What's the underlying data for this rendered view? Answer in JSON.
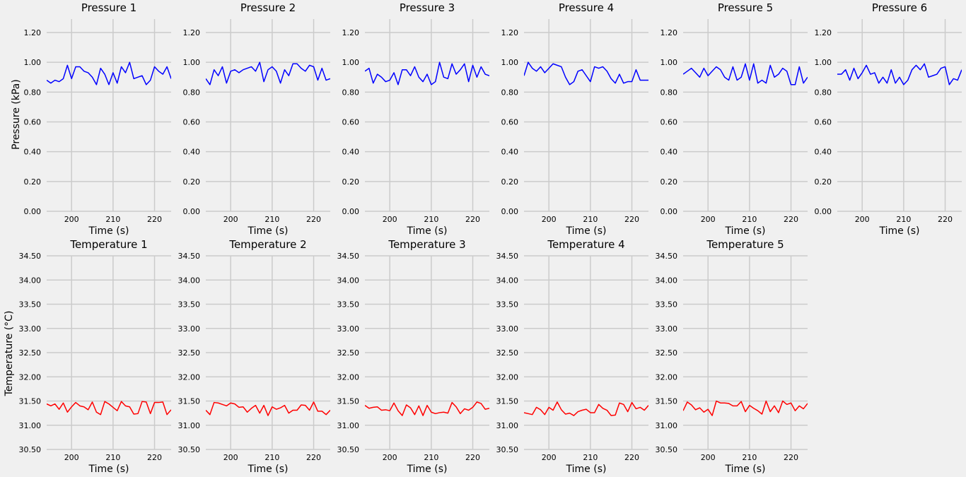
{
  "figure": {
    "background": "#f0f0f0",
    "grid_color": "#cbcbcb",
    "pressure_ylabel": "Pressure (kPa)",
    "temperature_ylabel": "Temperature (°C)"
  },
  "chart_data": [
    {
      "type": "line",
      "title": "Pressure 1",
      "xlabel": "Time (s)",
      "xlim": [
        194,
        224
      ],
      "ylim": [
        0,
        1.29
      ],
      "xticks": [
        200,
        210,
        220
      ],
      "yticks": [
        "0.00",
        "0.20",
        "0.40",
        "0.60",
        "0.80",
        "1.00",
        "1.20"
      ],
      "grid": true,
      "series": [
        {
          "color": "#0000ff",
          "x": [
            194,
            195,
            196,
            197,
            198,
            199,
            200,
            201,
            202,
            203,
            204,
            205,
            206,
            207,
            208,
            209,
            210,
            211,
            212,
            213,
            214,
            215,
            216,
            217,
            218,
            219,
            220,
            221,
            222,
            223,
            224
          ],
          "y": [
            0.88,
            0.86,
            0.88,
            0.87,
            0.89,
            0.98,
            0.89,
            0.97,
            0.97,
            0.94,
            0.93,
            0.9,
            0.85,
            0.96,
            0.92,
            0.85,
            0.93,
            0.86,
            0.97,
            0.93,
            1.0,
            0.89,
            0.9,
            0.91,
            0.85,
            0.88,
            0.97,
            0.94,
            0.92,
            0.97,
            0.89
          ]
        }
      ]
    },
    {
      "type": "line",
      "title": "Pressure 2",
      "xlabel": "Time (s)",
      "xlim": [
        194,
        224
      ],
      "ylim": [
        0,
        1.29
      ],
      "xticks": [
        200,
        210,
        220
      ],
      "yticks": [
        "0.00",
        "0.20",
        "0.40",
        "0.60",
        "0.80",
        "1.00",
        "1.20"
      ],
      "grid": true,
      "series": [
        {
          "color": "#0000ff",
          "x": [
            194,
            195,
            196,
            197,
            198,
            199,
            200,
            201,
            202,
            203,
            204,
            205,
            206,
            207,
            208,
            209,
            210,
            211,
            212,
            213,
            214,
            215,
            216,
            217,
            218,
            219,
            220,
            221,
            222,
            223,
            224
          ],
          "y": [
            0.89,
            0.85,
            0.95,
            0.91,
            0.97,
            0.86,
            0.94,
            0.95,
            0.93,
            0.95,
            0.96,
            0.97,
            0.94,
            1.0,
            0.87,
            0.95,
            0.97,
            0.94,
            0.86,
            0.95,
            0.91,
            0.99,
            0.99,
            0.96,
            0.94,
            0.98,
            0.97,
            0.88,
            0.96,
            0.88,
            0.89
          ]
        }
      ]
    },
    {
      "type": "line",
      "title": "Pressure 3",
      "xlabel": "Time (s)",
      "xlim": [
        194,
        224
      ],
      "ylim": [
        0,
        1.29
      ],
      "xticks": [
        200,
        210,
        220
      ],
      "yticks": [
        "0.00",
        "0.20",
        "0.40",
        "0.60",
        "0.80",
        "1.00",
        "1.20"
      ],
      "grid": true,
      "series": [
        {
          "color": "#0000ff",
          "x": [
            194,
            195,
            196,
            197,
            198,
            199,
            200,
            201,
            202,
            203,
            204,
            205,
            206,
            207,
            208,
            209,
            210,
            211,
            212,
            213,
            214,
            215,
            216,
            217,
            218,
            219,
            220,
            221,
            222,
            223,
            224
          ],
          "y": [
            0.94,
            0.96,
            0.86,
            0.92,
            0.9,
            0.87,
            0.88,
            0.93,
            0.85,
            0.95,
            0.95,
            0.91,
            0.97,
            0.9,
            0.87,
            0.92,
            0.85,
            0.87,
            1.0,
            0.9,
            0.89,
            0.99,
            0.92,
            0.95,
            0.99,
            0.87,
            0.98,
            0.9,
            0.97,
            0.92,
            0.91
          ]
        }
      ]
    },
    {
      "type": "line",
      "title": "Pressure 4",
      "xlabel": "Time (s)",
      "xlim": [
        194,
        224
      ],
      "ylim": [
        0,
        1.29
      ],
      "xticks": [
        200,
        210,
        220
      ],
      "yticks": [
        "0.00",
        "0.20",
        "0.40",
        "0.60",
        "0.80",
        "1.00",
        "1.20"
      ],
      "grid": true,
      "series": [
        {
          "color": "#0000ff",
          "x": [
            194,
            195,
            196,
            197,
            198,
            199,
            200,
            201,
            202,
            203,
            204,
            205,
            206,
            207,
            208,
            209,
            210,
            211,
            212,
            213,
            214,
            215,
            216,
            217,
            218,
            219,
            220,
            221,
            222,
            223,
            224
          ],
          "y": [
            0.91,
            1.0,
            0.96,
            0.94,
            0.97,
            0.93,
            0.96,
            0.99,
            0.98,
            0.97,
            0.9,
            0.85,
            0.87,
            0.94,
            0.95,
            0.91,
            0.87,
            0.97,
            0.96,
            0.97,
            0.94,
            0.89,
            0.86,
            0.92,
            0.86,
            0.87,
            0.87,
            0.95,
            0.88,
            0.88,
            0.88
          ]
        }
      ]
    },
    {
      "type": "line",
      "title": "Pressure 5",
      "xlabel": "Time (s)",
      "xlim": [
        194,
        224
      ],
      "ylim": [
        0,
        1.29
      ],
      "xticks": [
        200,
        210,
        220
      ],
      "yticks": [
        "0.00",
        "0.20",
        "0.40",
        "0.60",
        "0.80",
        "1.00",
        "1.20"
      ],
      "grid": true,
      "series": [
        {
          "color": "#0000ff",
          "x": [
            194,
            195,
            196,
            197,
            198,
            199,
            200,
            201,
            202,
            203,
            204,
            205,
            206,
            207,
            208,
            209,
            210,
            211,
            212,
            213,
            214,
            215,
            216,
            217,
            218,
            219,
            220,
            221,
            222,
            223,
            224
          ],
          "y": [
            0.92,
            0.94,
            0.96,
            0.93,
            0.9,
            0.96,
            0.91,
            0.94,
            0.97,
            0.95,
            0.9,
            0.88,
            0.97,
            0.88,
            0.9,
            0.99,
            0.88,
            0.99,
            0.86,
            0.88,
            0.86,
            0.98,
            0.9,
            0.92,
            0.96,
            0.94,
            0.85,
            0.85,
            0.97,
            0.86,
            0.9
          ]
        }
      ]
    },
    {
      "type": "line",
      "title": "Pressure 6",
      "xlabel": "Time (s)",
      "xlim": [
        194,
        224
      ],
      "ylim": [
        0,
        1.29
      ],
      "xticks": [
        200,
        210,
        220
      ],
      "yticks": [
        "0.00",
        "0.20",
        "0.40",
        "0.60",
        "0.80",
        "1.00",
        "1.20"
      ],
      "grid": true,
      "series": [
        {
          "color": "#0000ff",
          "x": [
            194,
            195,
            196,
            197,
            198,
            199,
            200,
            201,
            202,
            203,
            204,
            205,
            206,
            207,
            208,
            209,
            210,
            211,
            212,
            213,
            214,
            215,
            216,
            217,
            218,
            219,
            220,
            221,
            222,
            223,
            224
          ],
          "y": [
            0.92,
            0.92,
            0.95,
            0.88,
            0.96,
            0.89,
            0.93,
            0.98,
            0.92,
            0.93,
            0.86,
            0.9,
            0.86,
            0.95,
            0.86,
            0.9,
            0.85,
            0.88,
            0.95,
            0.98,
            0.95,
            0.99,
            0.9,
            0.91,
            0.92,
            0.96,
            0.97,
            0.85,
            0.89,
            0.88,
            0.95
          ]
        }
      ]
    },
    {
      "type": "line",
      "title": "Temperature 1",
      "xlabel": "Time (s)",
      "xlim": [
        194,
        224
      ],
      "ylim": [
        30.5,
        34.5
      ],
      "xticks": [
        200,
        210,
        220
      ],
      "yticks": [
        "30.50",
        "31.00",
        "31.50",
        "32.00",
        "32.50",
        "33.00",
        "33.50",
        "34.00",
        "34.50"
      ],
      "grid": true,
      "series": [
        {
          "color": "#ff0000",
          "x": [
            194,
            195,
            196,
            197,
            198,
            199,
            200,
            201,
            202,
            203,
            204,
            205,
            206,
            207,
            208,
            209,
            210,
            211,
            212,
            213,
            214,
            215,
            216,
            217,
            218,
            219,
            220,
            221,
            222,
            223,
            224
          ],
          "y": [
            31.44,
            31.4,
            31.44,
            31.33,
            31.46,
            31.27,
            31.38,
            31.47,
            31.4,
            31.38,
            31.32,
            31.48,
            31.27,
            31.22,
            31.49,
            31.44,
            31.37,
            31.3,
            31.49,
            31.4,
            31.38,
            31.23,
            31.24,
            31.49,
            31.48,
            31.24,
            31.47,
            31.47,
            31.48,
            31.22,
            31.32
          ]
        }
      ]
    },
    {
      "type": "line",
      "title": "Temperature 2",
      "xlabel": "Time (s)",
      "xlim": [
        194,
        224
      ],
      "ylim": [
        30.5,
        34.5
      ],
      "xticks": [
        200,
        210,
        220
      ],
      "yticks": [
        "30.50",
        "31.00",
        "31.50",
        "32.00",
        "32.50",
        "33.00",
        "33.50",
        "34.00",
        "34.50"
      ],
      "grid": true,
      "series": [
        {
          "color": "#ff0000",
          "x": [
            194,
            195,
            196,
            197,
            198,
            199,
            200,
            201,
            202,
            203,
            204,
            205,
            206,
            207,
            208,
            209,
            210,
            211,
            212,
            213,
            214,
            215,
            216,
            217,
            218,
            219,
            220,
            221,
            222,
            223,
            224
          ],
          "y": [
            31.31,
            31.22,
            31.47,
            31.46,
            31.43,
            31.4,
            31.46,
            31.44,
            31.37,
            31.38,
            31.27,
            31.35,
            31.41,
            31.25,
            31.41,
            31.2,
            31.38,
            31.33,
            31.36,
            31.41,
            31.25,
            31.31,
            31.31,
            31.42,
            31.41,
            31.31,
            31.48,
            31.29,
            31.29,
            31.22,
            31.31
          ]
        }
      ]
    },
    {
      "type": "line",
      "title": "Temperature 3",
      "xlabel": "Time (s)",
      "xlim": [
        194,
        224
      ],
      "ylim": [
        30.5,
        34.5
      ],
      "xticks": [
        200,
        210,
        220
      ],
      "yticks": [
        "30.50",
        "31.00",
        "31.50",
        "32.00",
        "32.50",
        "33.00",
        "33.50",
        "34.00",
        "34.50"
      ],
      "grid": true,
      "series": [
        {
          "color": "#ff0000",
          "x": [
            194,
            195,
            196,
            197,
            198,
            199,
            200,
            201,
            202,
            203,
            204,
            205,
            206,
            207,
            208,
            209,
            210,
            211,
            212,
            213,
            214,
            215,
            216,
            217,
            218,
            219,
            220,
            221,
            222,
            223,
            224
          ],
          "y": [
            31.41,
            31.35,
            31.37,
            31.38,
            31.31,
            31.32,
            31.3,
            31.46,
            31.3,
            31.2,
            31.42,
            31.36,
            31.22,
            31.4,
            31.2,
            31.41,
            31.27,
            31.24,
            31.26,
            31.27,
            31.25,
            31.47,
            31.38,
            31.24,
            31.34,
            31.31,
            31.37,
            31.48,
            31.45,
            31.33,
            31.35
          ]
        }
      ]
    },
    {
      "type": "line",
      "title": "Temperature 4",
      "xlabel": "Time (s)",
      "xlim": [
        194,
        224
      ],
      "ylim": [
        30.5,
        34.5
      ],
      "xticks": [
        200,
        210,
        220
      ],
      "yticks": [
        "30.50",
        "31.00",
        "31.50",
        "32.00",
        "32.50",
        "33.00",
        "33.50",
        "34.00",
        "34.50"
      ],
      "grid": true,
      "series": [
        {
          "color": "#ff0000",
          "x": [
            194,
            195,
            196,
            197,
            198,
            199,
            200,
            201,
            202,
            203,
            204,
            205,
            206,
            207,
            208,
            209,
            210,
            211,
            212,
            213,
            214,
            215,
            216,
            217,
            218,
            219,
            220,
            221,
            222,
            223,
            224
          ],
          "y": [
            31.26,
            31.24,
            31.22,
            31.37,
            31.32,
            31.22,
            31.37,
            31.31,
            31.48,
            31.32,
            31.23,
            31.25,
            31.2,
            31.28,
            31.31,
            31.33,
            31.26,
            31.26,
            31.43,
            31.35,
            31.31,
            31.2,
            31.21,
            31.46,
            31.43,
            31.28,
            31.47,
            31.34,
            31.37,
            31.31,
            31.41
          ]
        }
      ]
    },
    {
      "type": "line",
      "title": "Temperature 5",
      "xlabel": "Time (s)",
      "xlim": [
        194,
        224
      ],
      "ylim": [
        30.5,
        34.5
      ],
      "xticks": [
        200,
        210,
        220
      ],
      "yticks": [
        "30.50",
        "31.00",
        "31.50",
        "32.00",
        "32.50",
        "33.00",
        "33.50",
        "34.00",
        "34.50"
      ],
      "grid": true,
      "series": [
        {
          "color": "#ff0000",
          "x": [
            194,
            195,
            196,
            197,
            198,
            199,
            200,
            201,
            202,
            203,
            204,
            205,
            206,
            207,
            208,
            209,
            210,
            211,
            212,
            213,
            214,
            215,
            216,
            217,
            218,
            219,
            220,
            221,
            222,
            223,
            224
          ],
          "y": [
            31.3,
            31.48,
            31.42,
            31.32,
            31.36,
            31.27,
            31.33,
            31.2,
            31.5,
            31.46,
            31.46,
            31.45,
            31.4,
            31.4,
            31.49,
            31.28,
            31.41,
            31.35,
            31.3,
            31.23,
            31.5,
            31.28,
            31.4,
            31.26,
            31.5,
            31.43,
            31.46,
            31.3,
            31.4,
            31.34,
            31.45
          ]
        }
      ]
    }
  ]
}
